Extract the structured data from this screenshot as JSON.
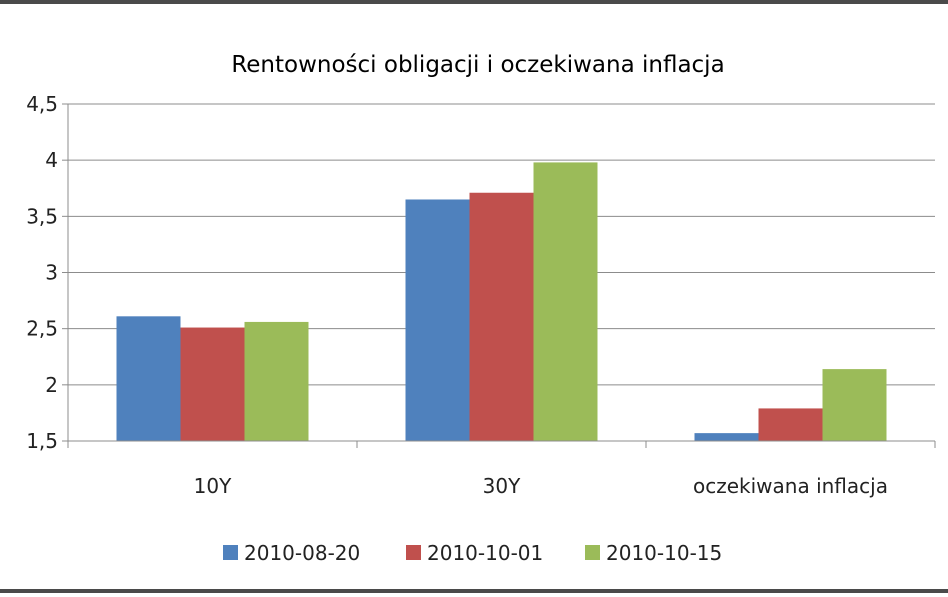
{
  "chart_data": {
    "type": "bar",
    "title": "Rentowności obligacji i oczekiwana inflacja",
    "xlabel": "",
    "ylabel": "",
    "categories": [
      "10Y",
      "30Y",
      "oczekiwana inflacja"
    ],
    "series": [
      {
        "name": "2010-08-20",
        "color": "#4f81bd",
        "values": [
          2.61,
          3.65,
          1.57
        ]
      },
      {
        "name": "2010-10-01",
        "color": "#c0504d",
        "values": [
          2.51,
          3.71,
          1.79
        ]
      },
      {
        "name": "2010-10-15",
        "color": "#9bbb59",
        "values": [
          2.56,
          3.98,
          2.14
        ]
      }
    ],
    "ylim": [
      1.5,
      4.5
    ],
    "yticks": [
      "1,5",
      "2",
      "2,5",
      "3",
      "3,5",
      "4",
      "4,5"
    ],
    "grid": true,
    "legend_position": "bottom"
  }
}
